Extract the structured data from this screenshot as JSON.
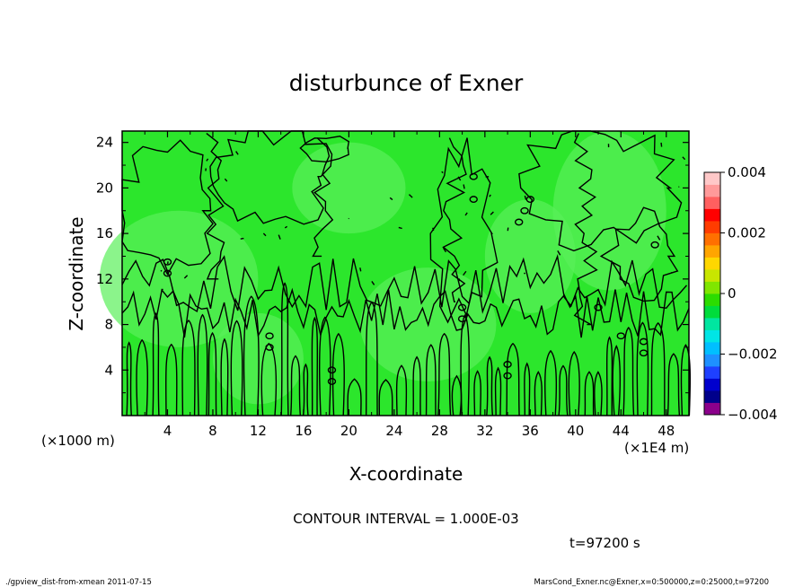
{
  "chart_data": {
    "type": "heatmap",
    "title": "disturbunce of Exner",
    "xlabel": "X-coordinate",
    "ylabel": "Z-coordinate",
    "x_unit": "(×1E4 m)",
    "y_unit": "(×1000 m)",
    "xlim": [
      0,
      50
    ],
    "ylim": [
      0,
      25
    ],
    "x_ticks": [
      4,
      8,
      12,
      16,
      20,
      24,
      28,
      32,
      36,
      40,
      44,
      48
    ],
    "y_ticks": [
      4,
      8,
      12,
      16,
      20,
      24
    ],
    "x_tick_labels": [
      "4",
      "8",
      "12",
      "16",
      "20",
      "24",
      "28",
      "32",
      "36",
      "40",
      "44",
      "48"
    ],
    "y_tick_labels": [
      "4",
      "8",
      "12",
      "16",
      "20",
      "24"
    ],
    "colorbar": {
      "range": [
        -0.004,
        0.004
      ],
      "tick_values": [
        0.004,
        0.002,
        0,
        -0.002,
        -0.004
      ],
      "tick_labels": [
        "0.004",
        "0.002",
        "0",
        "−0.002",
        "−0.004"
      ],
      "colors": [
        "#8b008b",
        "#00008b",
        "#0000cd",
        "#1e40ff",
        "#1e90ff",
        "#00bfff",
        "#00e5e5",
        "#00e6a0",
        "#00dc3c",
        "#2cdc00",
        "#80e600",
        "#c8e600",
        "#ffd700",
        "#ffa500",
        "#ff7000",
        "#ff3c00",
        "#ff0000",
        "#ff6060",
        "#ff9a9a",
        "#ffc8c8"
      ]
    },
    "field_colors": {
      "background": "#2ce62c",
      "light_patch": "#5af05a",
      "contour": "#000000"
    },
    "contour_interval": "CONTOUR INTERVAL = 1.000E-03",
    "time_label": "t=97200 s",
    "footer_left": "./gpview_dist-from-xmean   2011-07-15",
    "footer_right": "MarsCond_Exner.nc@Exner,x=0:500000,z=0:25000,t=97200"
  }
}
